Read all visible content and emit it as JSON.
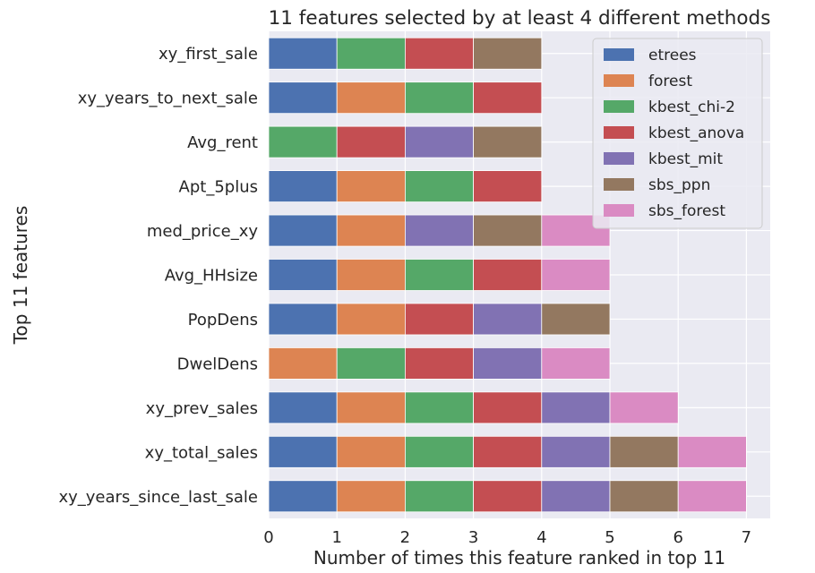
{
  "chart_data": {
    "type": "bar",
    "orientation": "horizontal",
    "stacked": true,
    "title": "11 features selected by at least 4 different methods",
    "xlabel": "Number of times this feature ranked in top 11",
    "ylabel": "Top 11 features",
    "xlim": [
      0,
      7.35
    ],
    "xticks": [
      "0",
      "1",
      "2",
      "3",
      "4",
      "5",
      "6",
      "7"
    ],
    "grid": true,
    "legend_position": "top-right",
    "categories": [
      "xy_first_sale",
      "xy_years_to_next_sale",
      "Avg_rent",
      "Apt_5plus",
      "med_price_xy",
      "Avg_HHsize",
      "PopDens",
      "DwelDens",
      "xy_prev_sales",
      "xy_total_sales",
      "xy_years_since_last_sale"
    ],
    "series": [
      {
        "name": "etrees",
        "color": "#4c72b0",
        "values": [
          1,
          1,
          0,
          1,
          1,
          1,
          1,
          0,
          1,
          1,
          1
        ]
      },
      {
        "name": "forest",
        "color": "#dd8452",
        "values": [
          0,
          1,
          0,
          1,
          1,
          1,
          1,
          1,
          1,
          1,
          1
        ]
      },
      {
        "name": "kbest_chi-2",
        "color": "#55a868",
        "values": [
          1,
          1,
          1,
          1,
          0,
          1,
          0,
          1,
          1,
          1,
          1
        ]
      },
      {
        "name": "kbest_anova",
        "color": "#c44e52",
        "values": [
          1,
          1,
          1,
          1,
          0,
          1,
          1,
          1,
          1,
          1,
          1
        ]
      },
      {
        "name": "kbest_mit",
        "color": "#8172b3",
        "values": [
          0,
          0,
          1,
          0,
          1,
          0,
          1,
          1,
          1,
          1,
          1
        ]
      },
      {
        "name": "sbs_ppn",
        "color": "#937860",
        "values": [
          1,
          0,
          1,
          0,
          1,
          0,
          1,
          0,
          0,
          1,
          1
        ]
      },
      {
        "name": "sbs_forest",
        "color": "#da8bc3",
        "values": [
          0,
          0,
          0,
          0,
          1,
          1,
          0,
          1,
          1,
          1,
          1
        ]
      }
    ]
  }
}
